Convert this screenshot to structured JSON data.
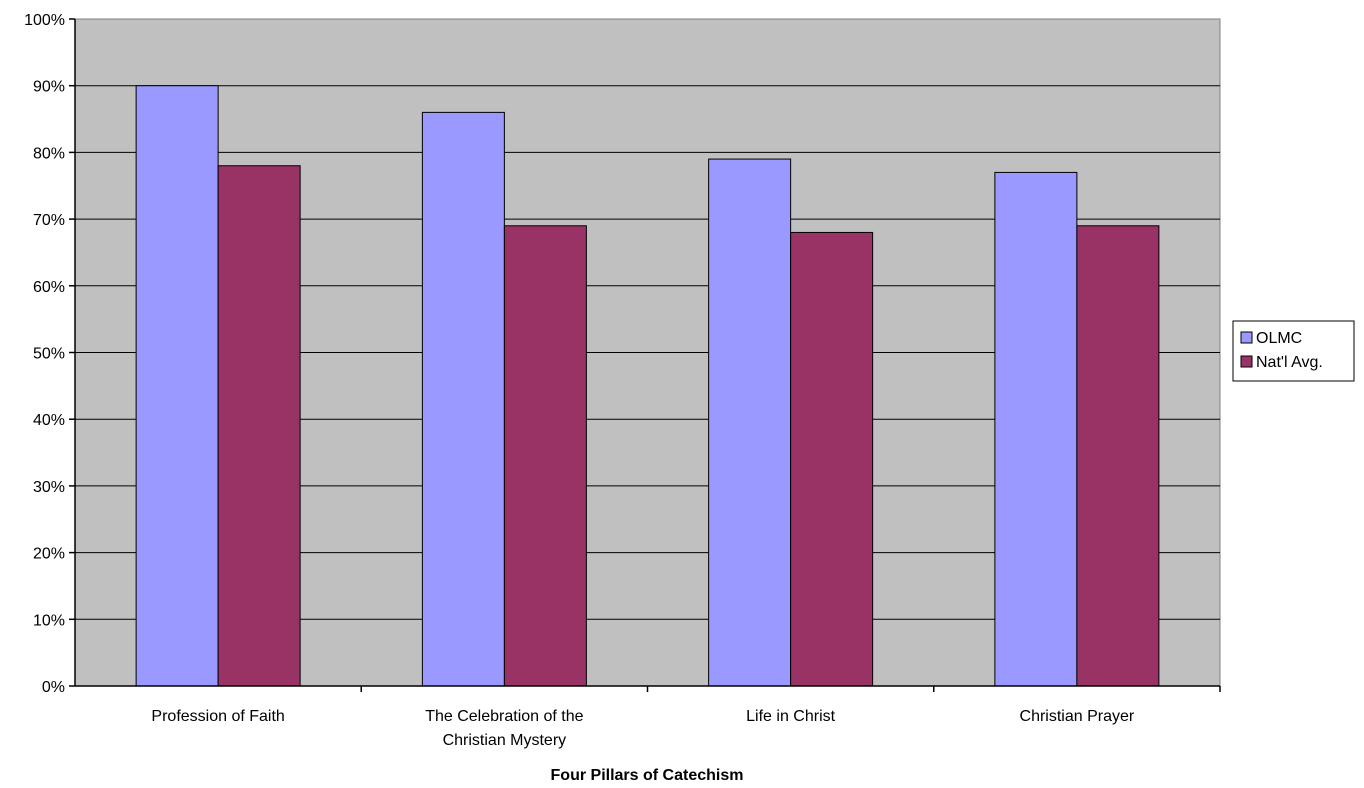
{
  "chart_data": {
    "type": "bar",
    "title": "",
    "xlabel": "Four Pillars of Catechism",
    "ylabel": "",
    "ylim": [
      0,
      100
    ],
    "y_tick_step": 10,
    "y_tick_suffix": "%",
    "grid": true,
    "legend_position": "right",
    "categories": [
      [
        "Profession of Faith"
      ],
      [
        "The Celebration of the",
        "Christian Mystery"
      ],
      [
        "Life in Christ"
      ],
      [
        "Christian Prayer"
      ]
    ],
    "series": [
      {
        "name": "OLMC",
        "color": "#9999ff",
        "values": [
          90,
          86,
          79,
          77
        ]
      },
      {
        "name": "Nat'l Avg.",
        "color": "#993366",
        "values": [
          78,
          69,
          68,
          69
        ]
      }
    ],
    "plot_background": "#c0c0c0"
  }
}
